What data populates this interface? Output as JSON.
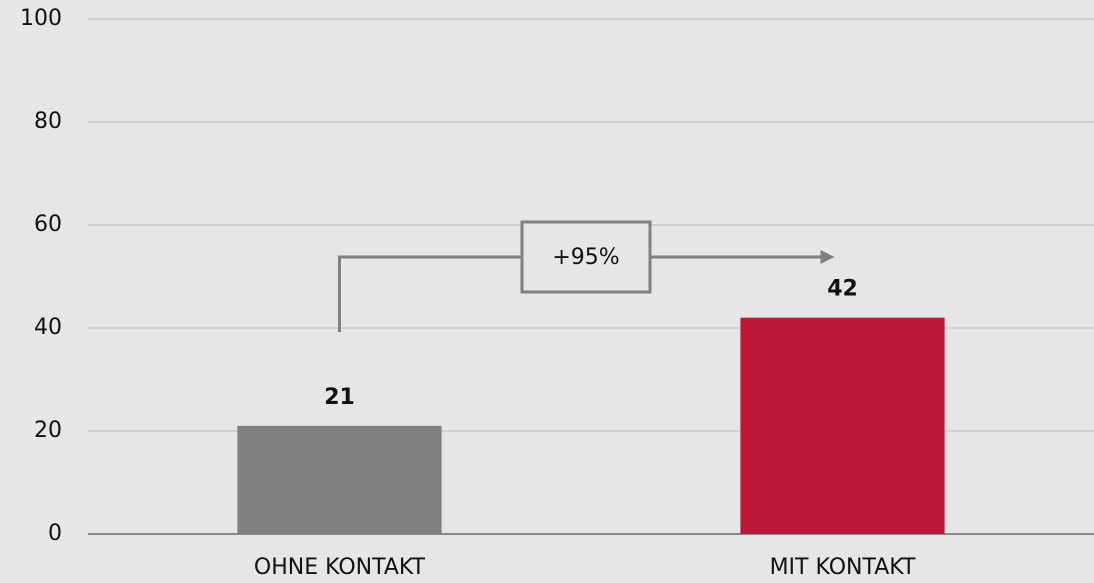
{
  "chart_data": {
    "type": "bar",
    "categories": [
      "OHNE KONTAKT",
      "MIT KONTAKT"
    ],
    "values": [
      21,
      42
    ],
    "colors": [
      "#808080",
      "#bc1839"
    ],
    "ylim": [
      0,
      100
    ],
    "yticks": [
      0,
      20,
      40,
      60,
      80,
      100
    ],
    "grid": true,
    "annotation": "+95%"
  }
}
